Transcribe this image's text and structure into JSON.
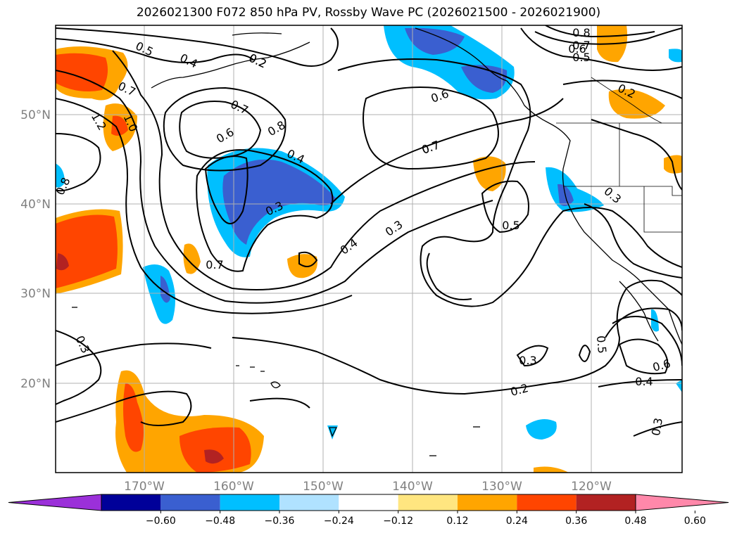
{
  "title": "2026021300 F072 850 hPa PV, Rossby Wave PC (2026021500 - 2026021900)",
  "lon_labels": [
    "170°W",
    "160°W",
    "150°W",
    "140°W",
    "130°W",
    "120°W"
  ],
  "lat_labels": [
    "50°N",
    "40°N",
    "30°N",
    "20°N"
  ],
  "colorbar": {
    "ticks": [
      "−0.60",
      "−0.48",
      "−0.36",
      "−0.24",
      "−0.12",
      "0.12",
      "0.24",
      "0.36",
      "0.48",
      "0.60"
    ],
    "colors": [
      "#9b30d9",
      "#000099",
      "#3a5fd0",
      "#00bfff",
      "#b0e2ff",
      "#ffffff",
      "#ffe680",
      "#ffa500",
      "#ff4500",
      "#b22222",
      "#ff88aa"
    ]
  },
  "contour_labels": [
    "0.5",
    "0.4",
    "0.2",
    "0.7",
    "1.2",
    "1.0",
    "0.8",
    "0.7",
    "0.6",
    "0.8",
    "0.4",
    "0.3",
    "0.6",
    "0.7",
    "0.8",
    "0.7",
    "0.6",
    "0.5",
    "0.7",
    "0.2",
    "0.2",
    "0.5",
    "0.3",
    "0.4",
    "0.7",
    "0.3",
    "0.3",
    "0.2",
    "0.3",
    "0.5",
    "0.6",
    "0.4",
    "0.3"
  ]
}
